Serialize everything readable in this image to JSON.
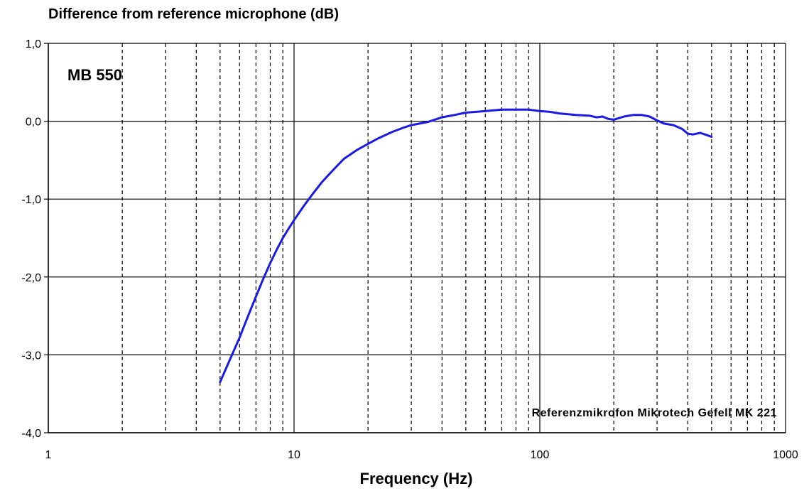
{
  "chart_data": {
    "type": "line",
    "title": "Difference from reference microphone (dB)",
    "xlabel": "Frequency (Hz)",
    "ylabel": "",
    "x_scale": "log",
    "xlim": [
      1,
      1000
    ],
    "ylim": [
      -4.0,
      1.0
    ],
    "x_ticks": [
      1,
      10,
      100,
      1000
    ],
    "x_tick_labels": [
      "1",
      "10",
      "100",
      "1000"
    ],
    "y_ticks": [
      1.0,
      0.0,
      -1.0,
      -2.0,
      -3.0,
      -4.0
    ],
    "y_tick_labels": [
      "1,0",
      "0,0",
      "-1,0",
      "-2,0",
      "-3,0",
      "-4,0"
    ],
    "grid": true,
    "annotations": {
      "device": "MB 550",
      "reference": "Referenzmikrofon Mikrotech Gefell MK 221"
    },
    "series": [
      {
        "color": "#1a1ae6",
        "x": [
          5,
          5.5,
          6,
          6.5,
          7,
          7.5,
          8,
          8.5,
          9,
          9.5,
          10,
          11,
          12,
          13,
          14,
          15,
          16,
          18,
          20,
          22,
          25,
          28,
          30,
          35,
          40,
          45,
          50,
          55,
          60,
          70,
          80,
          90,
          100,
          110,
          120,
          140,
          160,
          170,
          180,
          190,
          200,
          210,
          220,
          240,
          260,
          280,
          300,
          320,
          350,
          380,
          400,
          420,
          450,
          480,
          500
        ],
        "y": [
          -3.35,
          -3.05,
          -2.78,
          -2.5,
          -2.25,
          -2.02,
          -1.82,
          -1.65,
          -1.5,
          -1.38,
          -1.27,
          -1.08,
          -0.92,
          -0.78,
          -0.67,
          -0.57,
          -0.48,
          -0.37,
          -0.29,
          -0.22,
          -0.14,
          -0.08,
          -0.05,
          -0.01,
          0.05,
          0.08,
          0.11,
          0.12,
          0.13,
          0.15,
          0.15,
          0.15,
          0.13,
          0.12,
          0.1,
          0.08,
          0.07,
          0.05,
          0.06,
          0.03,
          0.02,
          0.04,
          0.06,
          0.08,
          0.08,
          0.06,
          0.01,
          -0.03,
          -0.05,
          -0.1,
          -0.16,
          -0.17,
          -0.15,
          -0.18,
          -0.2
        ]
      }
    ]
  }
}
